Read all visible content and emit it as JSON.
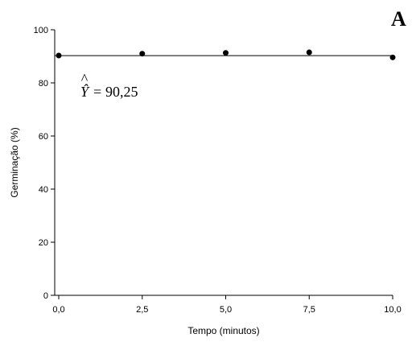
{
  "chart_data": {
    "type": "scatter",
    "panel_label": "A",
    "xlabel": "Tempo (minutos)",
    "ylabel": "Germinação (%)",
    "xlim": [
      0,
      10
    ],
    "ylim": [
      0,
      100
    ],
    "x_ticks": [
      0,
      2.5,
      5,
      7.5,
      10
    ],
    "x_tick_labels": [
      "0,0",
      "2,5",
      "5,0",
      "7,5",
      "10,0"
    ],
    "y_ticks": [
      0,
      20,
      40,
      60,
      80,
      100
    ],
    "y_tick_labels": [
      "0",
      "20",
      "40",
      "60",
      "80",
      "100"
    ],
    "points": [
      {
        "x": 0,
        "y": 90.3
      },
      {
        "x": 2.5,
        "y": 91.0
      },
      {
        "x": 5,
        "y": 91.3
      },
      {
        "x": 7.5,
        "y": 91.5
      },
      {
        "x": 10,
        "y": 89.6
      }
    ],
    "fit_line": {
      "y": 90.25
    },
    "equation": {
      "variable": "Ŷ",
      "operator": "=",
      "value": "90,25"
    },
    "grid": false,
    "legend": "none"
  }
}
